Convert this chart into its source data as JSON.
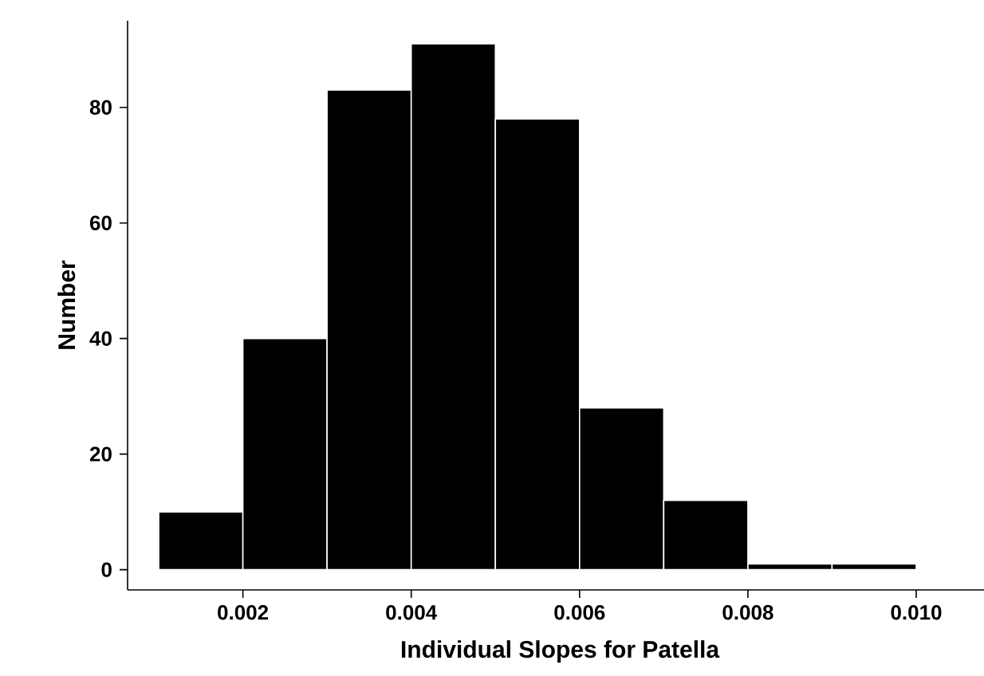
{
  "chart_data": {
    "type": "histogram",
    "xlabel": "Individual Slopes for Patella",
    "ylabel": "Number",
    "bins": [
      0.001,
      0.002,
      0.003,
      0.004,
      0.005,
      0.006,
      0.007,
      0.008,
      0.009,
      0.01
    ],
    "values": [
      10,
      40,
      83,
      91,
      78,
      28,
      12,
      1,
      1
    ],
    "color": "#000000",
    "xlim": [
      0.00063,
      0.0109
    ],
    "ylim": [
      -3.5,
      95
    ],
    "xticks": [
      {
        "value": 0.002,
        "label": "0.002"
      },
      {
        "value": 0.004,
        "label": "0.004"
      },
      {
        "value": 0.006,
        "label": "0.006"
      },
      {
        "value": 0.008,
        "label": "0.008"
      },
      {
        "value": 0.01,
        "label": "0.010"
      }
    ],
    "yticks": [
      0,
      20,
      40,
      60,
      80
    ],
    "grid": false
  }
}
